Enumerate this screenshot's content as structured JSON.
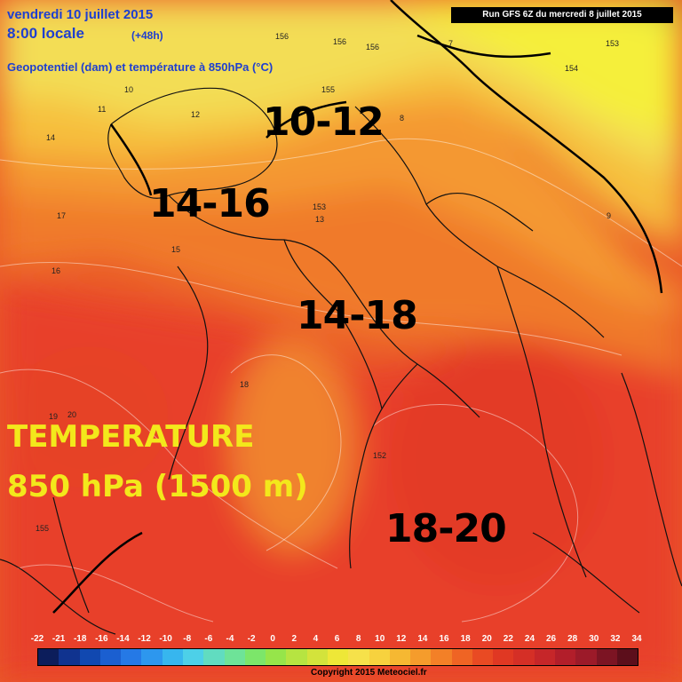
{
  "header": {
    "date": "vendredi 10 juillet 2015",
    "time": "8:00 locale",
    "lead": "(+48h)",
    "field": "Geopotentiel (dam) et température à 850hPa (°C)",
    "run": "Run GFS 6Z du mercredi 8 juillet 2015"
  },
  "annotations": {
    "north": "10-12",
    "northwest": "14-16",
    "center": "14-18",
    "south": "18-20",
    "legend_line1": "TEMPERATURE",
    "legend_line2": "850 hPa (1500 m)"
  },
  "scale": {
    "labels": [
      "-22",
      "-21",
      "-18",
      "-16",
      "-14",
      "-12",
      "-10",
      "-8",
      "-6",
      "-4",
      "-2",
      "0",
      "2",
      "4",
      "6",
      "8",
      "10",
      "12",
      "14",
      "16",
      "18",
      "20",
      "22",
      "24",
      "26",
      "28",
      "30",
      "32",
      "34"
    ],
    "colors": [
      "#0c1d5b",
      "#10338f",
      "#1148b0",
      "#1b5fd0",
      "#2579e6",
      "#2d97ee",
      "#37b6ee",
      "#4dd0e8",
      "#61dcc0",
      "#6ee398",
      "#7ce66a",
      "#96e54a",
      "#b6e441",
      "#d3e33b",
      "#eee737",
      "#f6e14a",
      "#f7d23e",
      "#f6b832",
      "#f59c2c",
      "#f38027",
      "#ef6424",
      "#e94a23",
      "#e03823",
      "#d52f26",
      "#c62629",
      "#b21e2a",
      "#9c1a29",
      "#7c1423",
      "#5c0e1b"
    ]
  },
  "map_labels": [
    {
      "t": "156"
    },
    {
      "t": "156"
    },
    {
      "t": "156"
    },
    {
      "t": "153"
    },
    {
      "t": "154"
    },
    {
      "t": "152"
    },
    {
      "t": "155"
    },
    {
      "t": "155"
    },
    {
      "t": "153"
    },
    {
      "t": "11"
    },
    {
      "t": "12"
    },
    {
      "t": "13"
    },
    {
      "t": "14"
    },
    {
      "t": "15"
    },
    {
      "t": "16"
    },
    {
      "t": "17"
    },
    {
      "t": "18"
    },
    {
      "t": "19"
    },
    {
      "t": "20"
    },
    {
      "t": "7"
    },
    {
      "t": "8"
    },
    {
      "t": "9"
    },
    {
      "t": "10"
    }
  ],
  "copyright": "Copyright 2015 Meteociel.fr"
}
